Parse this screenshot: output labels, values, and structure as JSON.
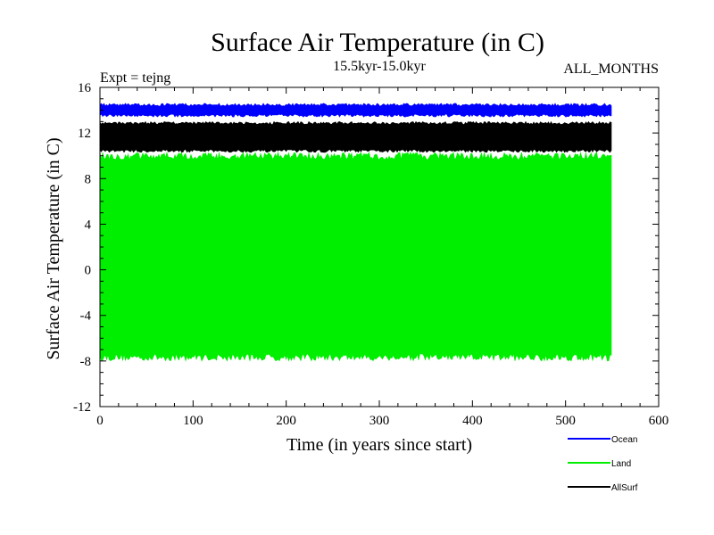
{
  "chart_data": {
    "type": "line",
    "title": "Surface Air Temperature (in C)",
    "subtitle": "15.5kyr-15.0kyr",
    "expt_label": "Expt = tejng",
    "months_label": "ALL_MONTHS",
    "xlabel": "Time (in years since start)",
    "ylabel": "Surface Air Temperature (in C)",
    "xlim": [
      0,
      600
    ],
    "ylim": [
      -12,
      16
    ],
    "x_ticks": [
      0,
      100,
      200,
      300,
      400,
      500,
      600
    ],
    "y_ticks": [
      -12,
      -8,
      -4,
      0,
      4,
      8,
      12,
      16
    ],
    "x_tick_labels": [
      "0",
      "100",
      "200",
      "300",
      "400",
      "500",
      "600"
    ],
    "y_tick_labels": [
      "-12",
      "-8",
      "-4",
      "0",
      "4",
      "8",
      "12",
      "16"
    ],
    "x_minor_step": 20,
    "y_minor_step": 1,
    "grid": false,
    "legend_position": "bottom-right",
    "series": [
      {
        "name": "Ocean",
        "color": "#0000ff",
        "x_range": [
          0,
          550
        ],
        "seasonal_min": 13.4,
        "seasonal_max": 14.6
      },
      {
        "name": "Land",
        "color": "#00ee00",
        "x_range": [
          0,
          550
        ],
        "seasonal_min": -8.0,
        "seasonal_max": 10.3
      },
      {
        "name": "AllSurf",
        "color": "#000000",
        "x_range": [
          0,
          550
        ],
        "seasonal_min": 10.3,
        "seasonal_max": 13.0
      }
    ]
  }
}
